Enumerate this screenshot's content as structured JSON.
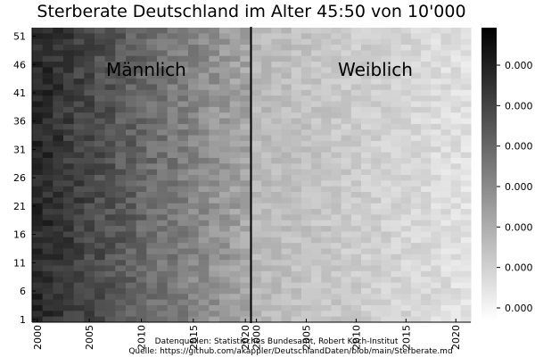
{
  "chart_data": {
    "type": "heatmap",
    "title": "Sterberate Deutschland im Alter 45:50 von 10'000",
    "panels": [
      {
        "label": "Männlich",
        "x_start": 2000,
        "x_end": 2020
      },
      {
        "label": "Weiblich",
        "x_start": 2000,
        "x_end": 2021
      }
    ],
    "x_ticks": [
      "2000",
      "2005",
      "2010",
      "2015",
      "2020"
    ],
    "x_tick_values": [
      2000,
      2005,
      2010,
      2015,
      2020
    ],
    "y_ticks": [
      "1",
      "6",
      "11",
      "16",
      "21",
      "26",
      "31",
      "36",
      "41",
      "46",
      "51"
    ],
    "y_tick_values": [
      1,
      6,
      11,
      16,
      21,
      26,
      31,
      36,
      41,
      46,
      51
    ],
    "y_range": [
      1,
      52
    ],
    "colorbar": {
      "tick_labels": [
        "0.000",
        "0.000",
        "0.000",
        "0.000",
        "0.000",
        "0.000",
        "0.000"
      ],
      "colors": [
        "#000000",
        "#ffffff"
      ]
    },
    "footnotes": [
      "Datenquellen: Statistisches Bundesamt, Robert Koch-Institut",
      "Quelle: https://github.com/akappler/DeutschlandDaten/blob/main/Sterberate.md"
    ]
  }
}
